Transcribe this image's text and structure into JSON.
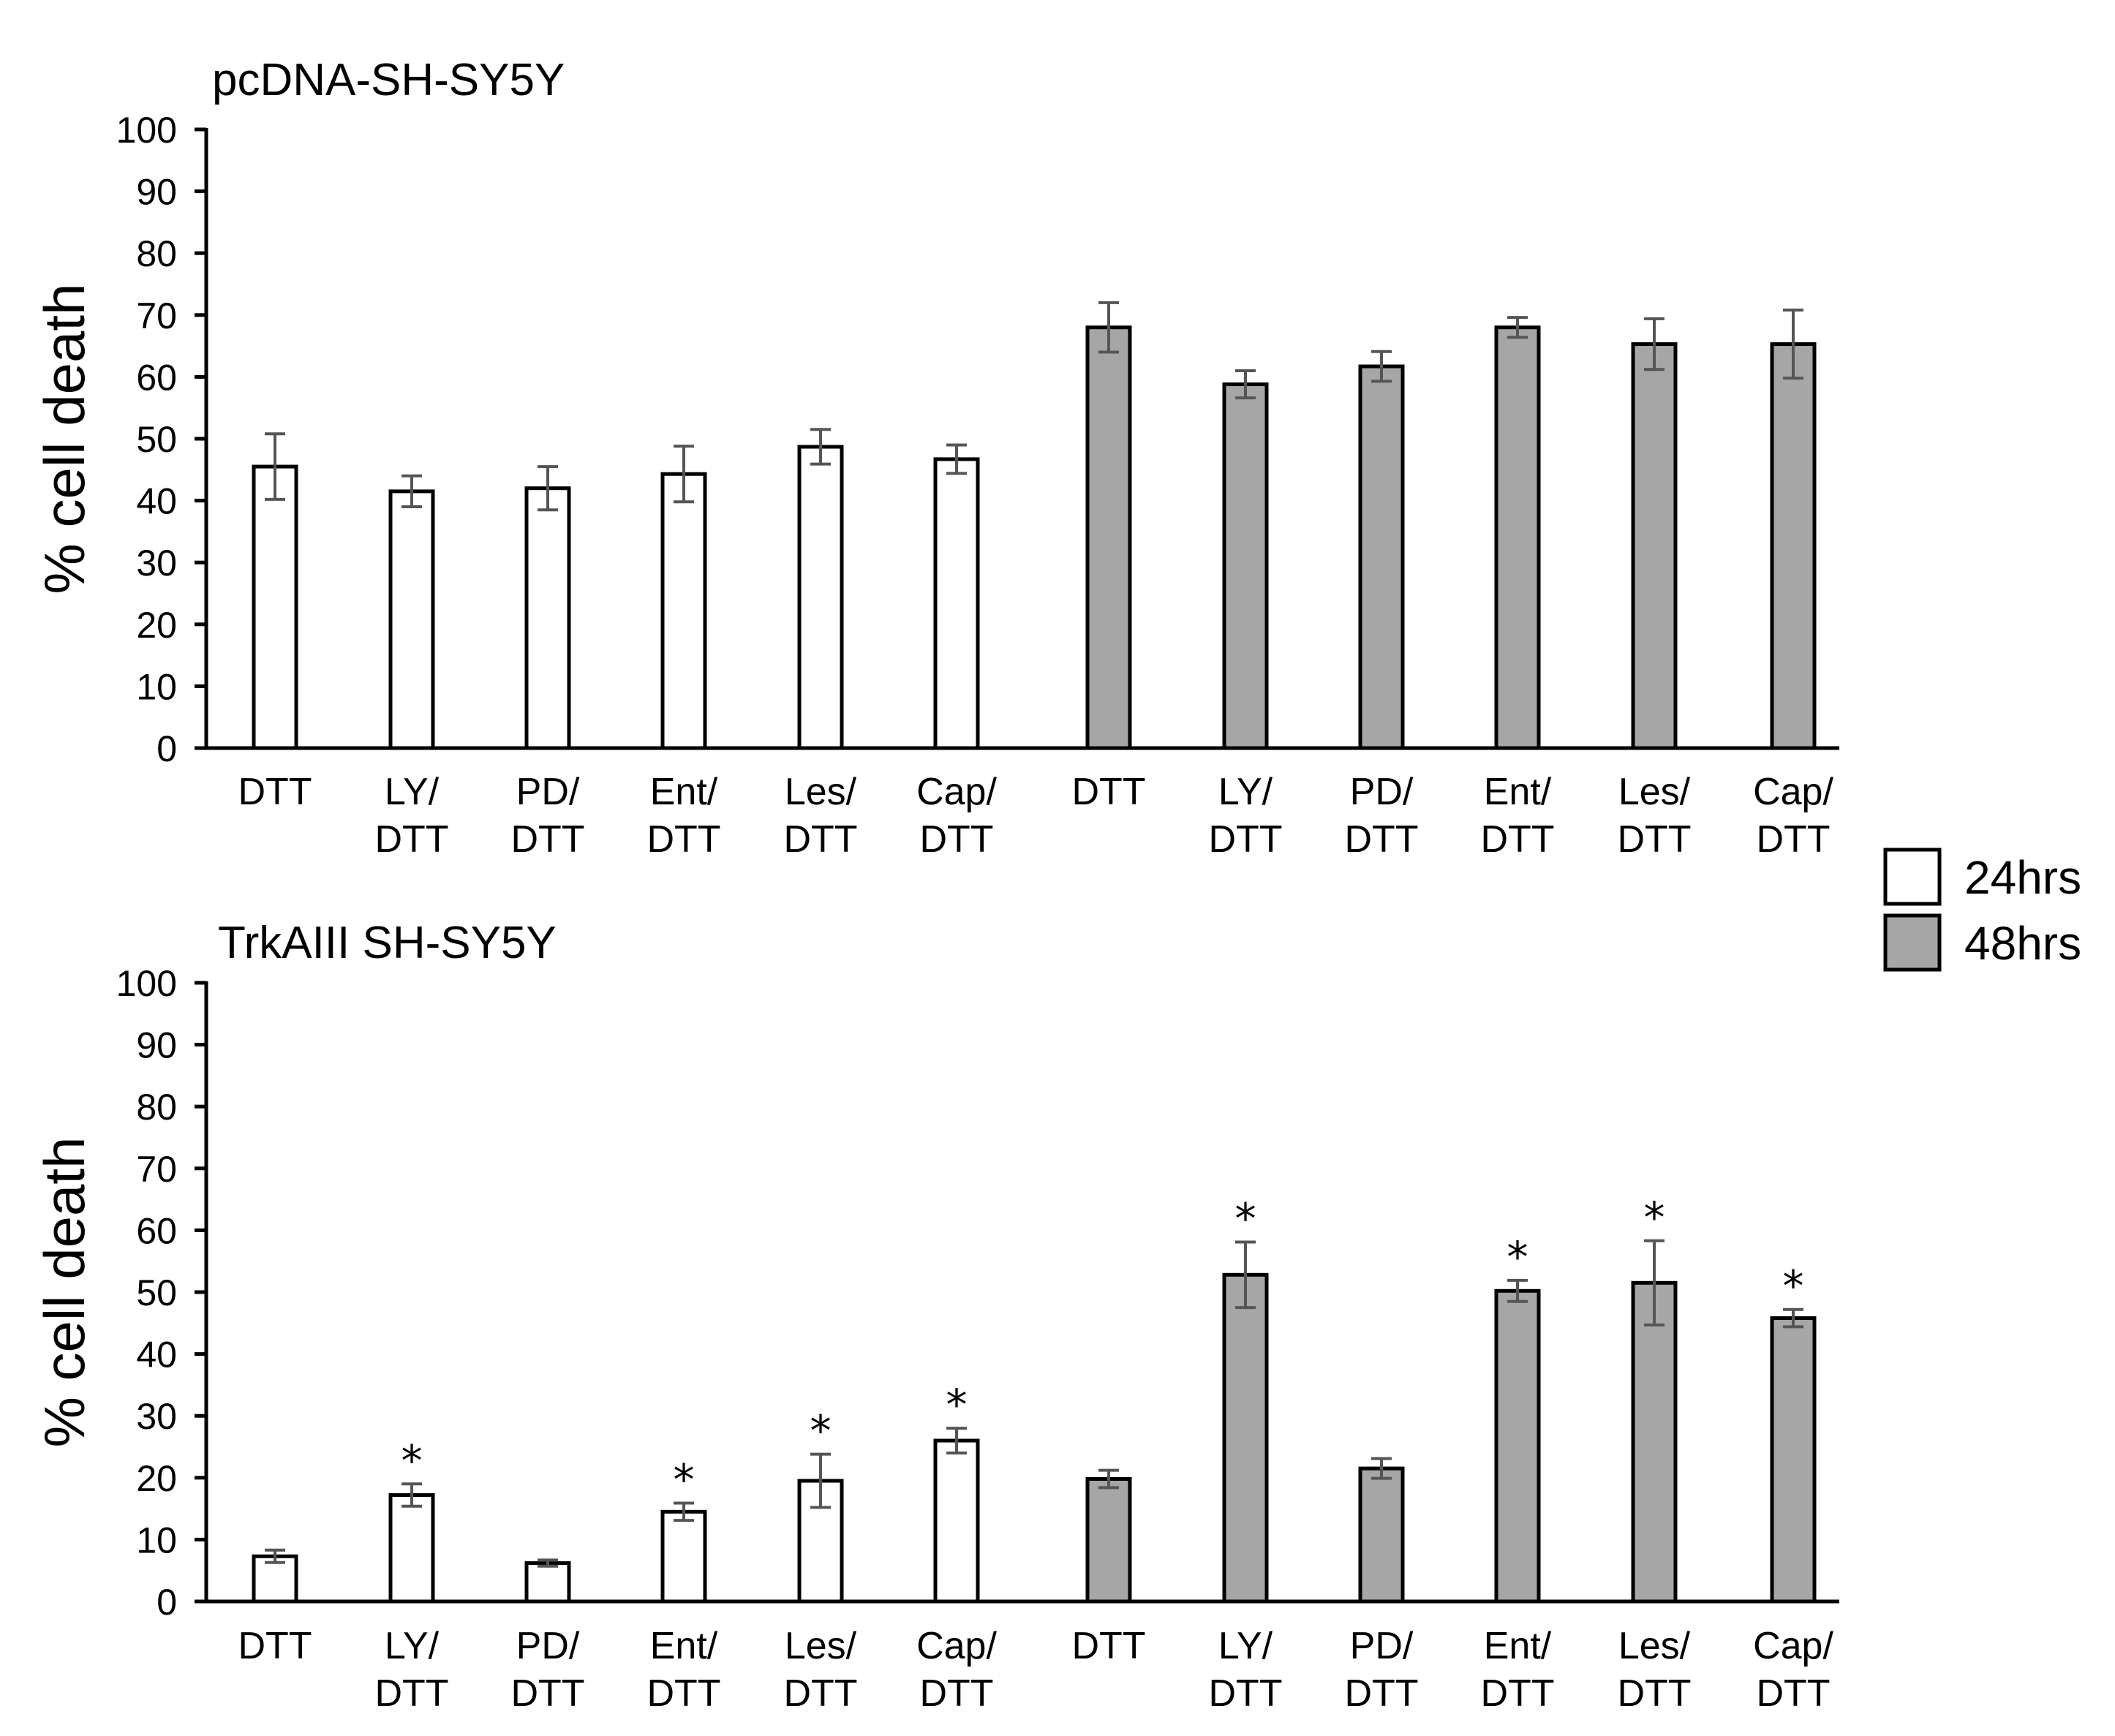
{
  "legend": {
    "items": [
      {
        "label": "24hrs",
        "color": "#ffffff"
      },
      {
        "label": "48hrs",
        "color": "#a6a6a6"
      }
    ]
  },
  "colors": {
    "bar_24": "#ffffff",
    "bar_48": "#a6a6a6",
    "stroke": "#000000",
    "error_bar": "#555555"
  },
  "chart_data": [
    {
      "type": "bar",
      "title": "pcDNA-SH-SY5Y",
      "ylabel": "% cell death",
      "xlabel": "",
      "ylim": [
        0,
        100
      ],
      "yticks": [
        0,
        10,
        20,
        30,
        40,
        50,
        60,
        70,
        80,
        90,
        100
      ],
      "categories": [
        [
          "DTT"
        ],
        [
          "LY/",
          "DTT"
        ],
        [
          "PD/",
          "DTT"
        ],
        [
          "Ent/",
          "DTT"
        ],
        [
          "Les/",
          "DTT"
        ],
        [
          "Cap/",
          "DTT"
        ],
        [
          "DTT"
        ],
        [
          "LY/",
          "DTT"
        ],
        [
          "PD/",
          "DTT"
        ],
        [
          "Ent/",
          "DTT"
        ],
        [
          "Les/",
          "DTT"
        ],
        [
          "Cap/",
          "DTT"
        ]
      ],
      "series_of_bar": [
        "24hrs",
        "24hrs",
        "24hrs",
        "24hrs",
        "24hrs",
        "24hrs",
        "48hrs",
        "48hrs",
        "48hrs",
        "48hrs",
        "48hrs",
        "48hrs"
      ],
      "values": [
        45.5,
        41.5,
        42,
        44.3,
        48.7,
        46.7,
        68,
        58.8,
        61.7,
        68,
        65.3,
        65.3
      ],
      "errors": [
        5.3,
        2.5,
        3.5,
        4.5,
        2.8,
        2.3,
        4,
        2.2,
        2.4,
        1.6,
        4.1,
        5.5
      ],
      "significant": [
        false,
        false,
        false,
        false,
        false,
        false,
        false,
        false,
        false,
        false,
        false,
        false
      ]
    },
    {
      "type": "bar",
      "title": "TrkAIII SH-SY5Y",
      "ylabel": "% cell death",
      "xlabel": "",
      "ylim": [
        0,
        100
      ],
      "yticks": [
        0,
        10,
        20,
        30,
        40,
        50,
        60,
        70,
        80,
        90,
        100
      ],
      "categories": [
        [
          "DTT"
        ],
        [
          "LY/",
          "DTT"
        ],
        [
          "PD/",
          "DTT"
        ],
        [
          "Ent/",
          "DTT"
        ],
        [
          "Les/",
          "DTT"
        ],
        [
          "Cap/",
          "DTT"
        ],
        [
          "DTT"
        ],
        [
          "LY/",
          "DTT"
        ],
        [
          "PD/",
          "DTT"
        ],
        [
          "Ent/",
          "DTT"
        ],
        [
          "Les/",
          "DTT"
        ],
        [
          "Cap/",
          "DTT"
        ]
      ],
      "series_of_bar": [
        "24hrs",
        "24hrs",
        "24hrs",
        "24hrs",
        "24hrs",
        "24hrs",
        "48hrs",
        "48hrs",
        "48hrs",
        "48hrs",
        "48hrs",
        "48hrs"
      ],
      "values": [
        7.3,
        17.2,
        6.2,
        14.5,
        19.5,
        26,
        19.8,
        52.8,
        21.5,
        50.2,
        51.5,
        45.8
      ],
      "errors": [
        1,
        1.8,
        0.5,
        1.4,
        4.3,
        2,
        1.4,
        5.3,
        1.6,
        1.7,
        6.8,
        1.4
      ],
      "significant": [
        false,
        true,
        false,
        true,
        true,
        true,
        false,
        true,
        false,
        true,
        true,
        true
      ],
      "significance_marker": "*"
    }
  ]
}
